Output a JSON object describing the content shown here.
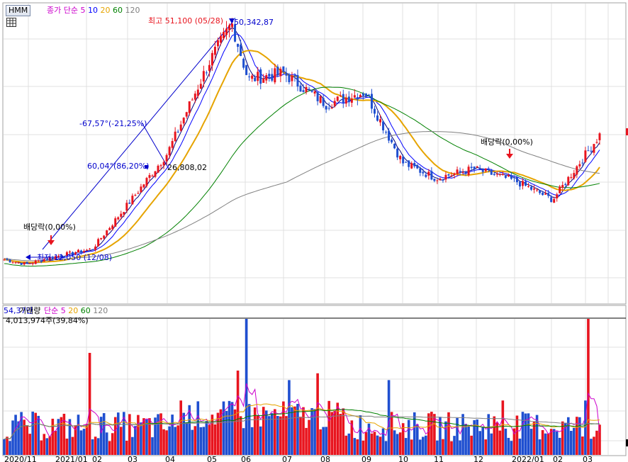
{
  "header": {
    "ticker": "HMM",
    "legend_prefix": "종가 단순",
    "ma_periods": [
      "5",
      "10",
      "20",
      "60",
      "120"
    ],
    "ma_colors": [
      "#cc00cc",
      "#0000ff",
      "#e6a400",
      "#008000",
      "#808080"
    ]
  },
  "volume_header": {
    "current_value": "54,37만",
    "title": "거래량",
    "legend_prefix": "단순",
    "ma_periods": [
      "5",
      "20",
      "60",
      "120"
    ],
    "ma_colors": [
      "#cc00cc",
      "#e6a400",
      "#008000",
      "#808080"
    ],
    "sub_text": "4,013,974주(39,84%)"
  },
  "annotations": {
    "high": "최고 51,100 (05/28)",
    "high_trend_value": "50,342,87",
    "low": "최저 12,050 (12/08)",
    "trend_upper": "-67,57°(-21,25%)",
    "trend_lower": "60,04°(86,20%)",
    "trend_point": "26,808,02",
    "dividend_1": "배당락(0,00%)",
    "dividend_2": "배당락(0,00%)"
  },
  "x_axis_labels": [
    "2020/11",
    "2021/01",
    "02",
    "03",
    "04",
    "05",
    "06",
    "07",
    "08",
    "09",
    "10",
    "11",
    "12",
    "2022/01",
    "02",
    "03"
  ],
  "colors": {
    "up": "#e8141e",
    "down": "#1f4fd0",
    "trend_line": "#0000cc",
    "grid": "#e0e0e0"
  },
  "chart_data": {
    "type": "candlestick",
    "title": "HMM",
    "x": [
      "2020/11",
      "2021/01",
      "02",
      "03",
      "04",
      "05",
      "06",
      "07",
      "08",
      "09",
      "10",
      "11",
      "12",
      "2022/01",
      "02",
      "03"
    ],
    "price_anchors": [
      {
        "x": "2020/11",
        "close": 12800
      },
      {
        "x": "2020/12",
        "close": 12050
      },
      {
        "x": "2021/01",
        "close": 13500
      },
      {
        "x": "02",
        "close": 14500
      },
      {
        "x": "03",
        "close": 22000
      },
      {
        "x": "04",
        "close": 30000
      },
      {
        "x": "05",
        "close": 45000
      },
      {
        "x": "05/28",
        "close": 51100
      },
      {
        "x": "06",
        "close": 42000
      },
      {
        "x": "07",
        "close": 43000
      },
      {
        "x": "08",
        "close": 38000
      },
      {
        "x": "09",
        "close": 40000
      },
      {
        "x": "10",
        "close": 28500
      },
      {
        "x": "11",
        "close": 26000
      },
      {
        "x": "12",
        "close": 27500
      },
      {
        "x": "2022/01",
        "close": 25500
      },
      {
        "x": "02",
        "close": 22500
      },
      {
        "x": "03",
        "close": 33000
      }
    ],
    "high": 51100,
    "low": 12050,
    "volume_last": "4,013,974주"
  }
}
